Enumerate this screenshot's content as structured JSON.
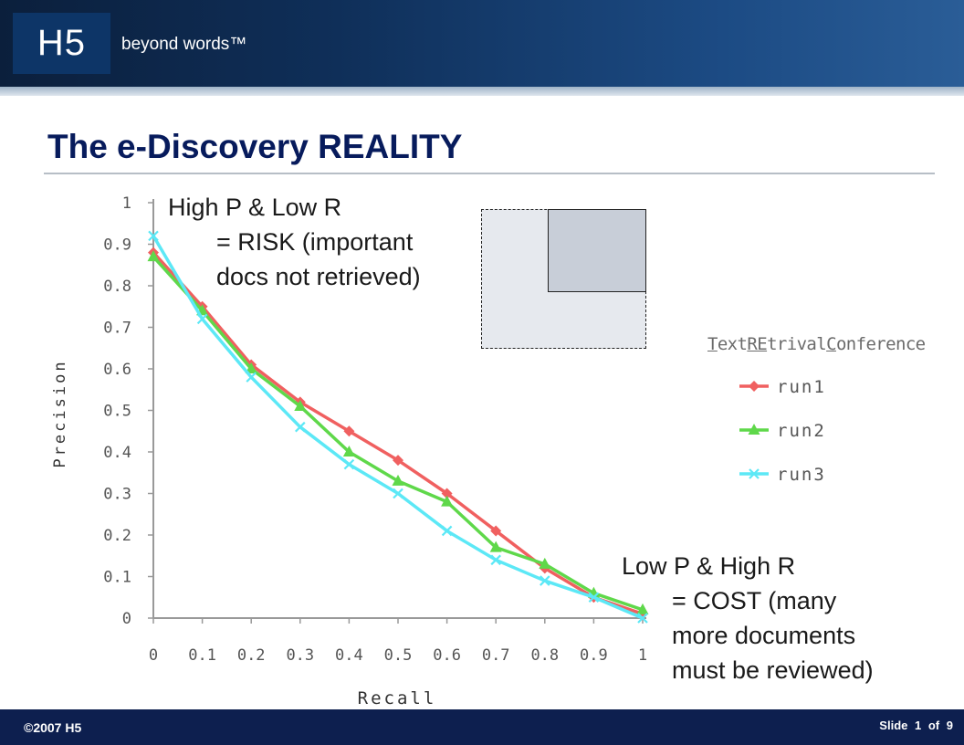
{
  "header": {
    "logo_text": "H5",
    "tagline": "beyond words™"
  },
  "title": "The e-Discovery REALITY",
  "callouts": {
    "risk": {
      "title": "High P & Low R",
      "line1": "= RISK (important",
      "line2": "docs not retrieved)"
    },
    "cost": {
      "title": "Low P & High R",
      "line1": "= COST (many",
      "line2": "more documents",
      "line3": "must be reviewed)"
    }
  },
  "trec": {
    "T": "T",
    "ext": "ext",
    "RE": "RE",
    "trival": "trival",
    "C": "C",
    "onference": "onference"
  },
  "footer": {
    "copyright": "©2007 H5",
    "slide_label": "Slide",
    "slide_num": "1",
    "of_label": "of",
    "slide_total": "9"
  },
  "chart_data": {
    "type": "line",
    "xlabel": "Recall",
    "ylabel": "Precision",
    "xlim": [
      0,
      1
    ],
    "ylim": [
      0,
      1
    ],
    "x": [
      0,
      0.1,
      0.2,
      0.3,
      0.4,
      0.5,
      0.6,
      0.7,
      0.8,
      0.9,
      1.0
    ],
    "xticks": [
      "0",
      "0.1",
      "0.2",
      "0.3",
      "0.4",
      "0.5",
      "0.6",
      "0.7",
      "0.8",
      "0.9",
      "1"
    ],
    "yticks": [
      "0",
      "0.1",
      "0.2",
      "0.3",
      "0.4",
      "0.5",
      "0.6",
      "0.7",
      "0.8",
      "0.9",
      "1"
    ],
    "grid": false,
    "legend_position": "right",
    "series": [
      {
        "name": "run1",
        "color": "#f06060",
        "marker": "diamond",
        "values": [
          0.88,
          0.75,
          0.61,
          0.52,
          0.45,
          0.38,
          0.3,
          0.21,
          0.12,
          0.05,
          0.01
        ]
      },
      {
        "name": "run2",
        "color": "#5fd84a",
        "marker": "triangle",
        "values": [
          0.87,
          0.74,
          0.6,
          0.51,
          0.4,
          0.33,
          0.28,
          0.17,
          0.13,
          0.06,
          0.02
        ]
      },
      {
        "name": "run3",
        "color": "#5ce8f6",
        "marker": "x",
        "values": [
          0.92,
          0.72,
          0.58,
          0.46,
          0.37,
          0.3,
          0.21,
          0.14,
          0.09,
          0.05,
          0.0
        ]
      }
    ]
  }
}
